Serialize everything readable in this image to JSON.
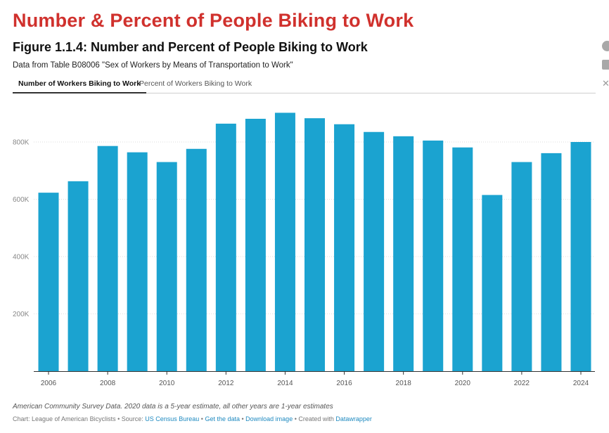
{
  "headline": "Number & Percent of People Biking to Work",
  "figure": {
    "title": "Figure 1.1.4: Number and Percent of People Biking to Work",
    "description": "Data from Table B08006 \"Sex of Workers by Means of Transportation to Work\""
  },
  "tabs": [
    {
      "label": "Number of Workers Biking to Work",
      "active": true
    },
    {
      "label": "Percent of Workers Biking to Work",
      "active": false
    }
  ],
  "share_icons": [
    "facebook-icon",
    "linkedin-icon",
    "x-icon"
  ],
  "colors": {
    "headline": "#d0312d",
    "bar": "#1ba3d0",
    "link": "#1f8ac0"
  },
  "chart_data": {
    "type": "bar",
    "title": "Figure 1.1.4: Number and Percent of People Biking to Work",
    "xlabel": "",
    "ylabel": "",
    "categories": [
      "2006",
      "2007",
      "2008",
      "2009",
      "2010",
      "2011",
      "2012",
      "2013",
      "2014",
      "2015",
      "2016",
      "2017",
      "2018",
      "2019",
      "2020",
      "2021",
      "2022",
      "2023",
      "2024"
    ],
    "values": [
      623000,
      663000,
      786000,
      764000,
      730000,
      776000,
      864000,
      881000,
      902000,
      883000,
      862000,
      835000,
      820000,
      805000,
      781000,
      615000,
      730000,
      761000,
      800000
    ],
    "x_tick_labels": [
      "2006",
      "2008",
      "2010",
      "2012",
      "2014",
      "2016",
      "2018",
      "2020",
      "2022",
      "2024"
    ],
    "y_ticks": [
      200000,
      400000,
      600000,
      800000
    ],
    "y_tick_labels": [
      "200K",
      "400K",
      "600K",
      "800K"
    ],
    "ylim": [
      0,
      920000
    ],
    "grid": true
  },
  "footer": {
    "note": "American Community Survey Data. 2020 data is a 5-year estimate, all other years are 1-year estimates",
    "credit_prefix": "Chart: League of American Bicyclists • Source: ",
    "source_link": "US Census Bureau",
    "sep1": " • ",
    "get_data": "Get the data",
    "sep2": " • ",
    "download": "Download image",
    "created_prefix": " • Created with ",
    "tool": "Datawrapper"
  }
}
